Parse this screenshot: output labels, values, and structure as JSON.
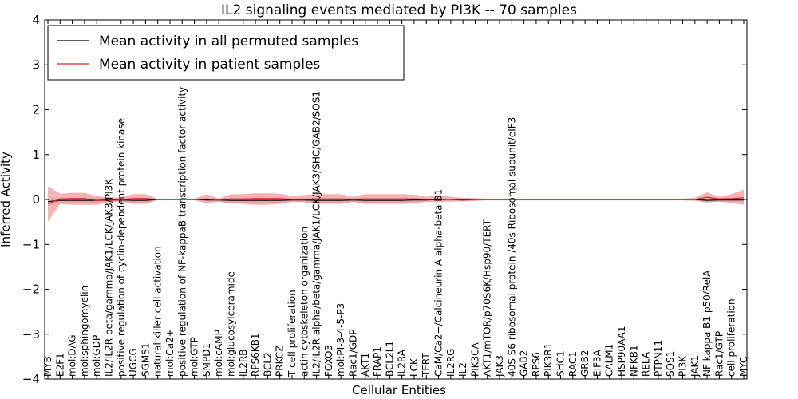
{
  "chart_data": {
    "type": "line",
    "title": "IL2 signaling events mediated by PI3K -- 70 samples",
    "xlabel": "Cellular Entities",
    "ylabel": "Inferred Activity",
    "ylim": [
      -4,
      4
    ],
    "yticks": [
      "−4",
      "−3",
      "−2",
      "−1",
      "0",
      "1",
      "2",
      "3",
      "4"
    ],
    "grid": false,
    "legend_position": "top-left",
    "colors": {
      "permuted": "#000000",
      "patient": "#d62728",
      "patient_band": "#f08080",
      "permuted_band": "#bbbbbb"
    },
    "categories": [
      "MYB",
      "E2F1",
      "mol:DAG",
      "mol:sphingomyelin",
      "mol:GDP",
      "IL2/IL2R beta/gamma/JAK1/LCK/JAK3/PI3K",
      "positive regulation of cyclin-dependent protein kinase",
      "UGCG",
      "SGMS1",
      "natural killer cell activation",
      "mol:Ca2+",
      "positive regulation of NF-kappaB transcription factor activity",
      "mol:GTP",
      "SMPD1",
      "mol:cAMP",
      "mol:glucosylceramide",
      "IL2RB",
      "RPS6KB1",
      "BCL2",
      "PRKCZ",
      "T cell proliferation",
      "actin cytoskeleton organization",
      "IL2/IL2R alpha/beta/gamma/JAK1/LCK/JAK3/SHC/GAB2/SOS1",
      "FOXO3",
      "mol:PI-3-4-5-P3",
      "Rac1/GDP",
      "AKT1",
      "FRAP1",
      "BCL2L1",
      "IL2RA",
      "LCK",
      "TERT",
      "CaM/Ca2+/Calcineurin A alpha-beta B1",
      "IL2RG",
      "IL2",
      "PIK3CA",
      "AKT1/mTOR/p70S6K/Hsp90/TERT",
      "JAK3",
      "40S S6 ribosomal protein /40s Ribosomal subunit/eIF3",
      "GAB2",
      "RPS6",
      "PIK3R1",
      "SHC1",
      "RAC1",
      "GRB2",
      "EIF3A",
      "CALM1",
      "HSP90AA1",
      "NFKB1",
      "RELA",
      "PTPN11",
      "SOS1",
      "PI3K",
      "JAK1",
      "NF kappa B1 p50/RelA",
      "Rac1/GTP",
      "cell proliferation",
      "MYC"
    ],
    "series": [
      {
        "name": "Mean activity in all permuted samples",
        "values": [
          -0.05,
          -0.02,
          -0.02,
          -0.02,
          -0.02,
          -0.01,
          -0.01,
          -0.02,
          -0.02,
          0,
          0,
          0,
          0,
          -0.01,
          -0.01,
          -0.02,
          -0.02,
          -0.02,
          -0.02,
          -0.02,
          -0.01,
          -0.01,
          -0.02,
          -0.02,
          -0.02,
          -0.01,
          -0.02,
          -0.02,
          -0.02,
          -0.02,
          -0.01,
          -0.01,
          0,
          0,
          -0.01,
          0,
          0,
          0,
          0,
          0,
          0,
          0,
          0,
          0,
          0,
          0,
          0,
          0,
          0,
          0,
          0,
          0,
          0,
          0,
          -0.02,
          -0.01,
          -0.01,
          -0.01
        ],
        "upper": [
          0.02,
          0.04,
          0.04,
          0.04,
          0.04,
          0.03,
          0.03,
          0.04,
          0.04,
          0.01,
          0.01,
          0.01,
          0.01,
          0.02,
          0.02,
          0.04,
          0.04,
          0.04,
          0.04,
          0.04,
          0.03,
          0.03,
          0.04,
          0.04,
          0.04,
          0.03,
          0.04,
          0.04,
          0.04,
          0.04,
          0.03,
          0.03,
          0.01,
          0.01,
          0.02,
          0.01,
          0.01,
          0.01,
          0.01,
          0.01,
          0.01,
          0.01,
          0.01,
          0.01,
          0.01,
          0.01,
          0.01,
          0.01,
          0.01,
          0.01,
          0.01,
          0.01,
          0.01,
          0.01,
          0.03,
          0.02,
          0.02,
          0.02
        ],
        "lower": [
          -0.14,
          -0.09,
          -0.09,
          -0.09,
          -0.09,
          -0.06,
          -0.05,
          -0.09,
          -0.09,
          -0.02,
          -0.02,
          -0.02,
          -0.02,
          -0.05,
          -0.05,
          -0.09,
          -0.09,
          -0.09,
          -0.09,
          -0.09,
          -0.06,
          -0.06,
          -0.09,
          -0.09,
          -0.09,
          -0.06,
          -0.09,
          -0.09,
          -0.09,
          -0.09,
          -0.06,
          -0.06,
          -0.03,
          -0.03,
          -0.05,
          -0.03,
          -0.02,
          -0.02,
          -0.02,
          -0.02,
          -0.02,
          -0.02,
          -0.02,
          -0.02,
          -0.02,
          -0.02,
          -0.02,
          -0.02,
          -0.02,
          -0.02,
          -0.02,
          -0.02,
          -0.02,
          -0.02,
          -0.08,
          -0.05,
          -0.05,
          -0.06
        ]
      },
      {
        "name": "Mean activity in patient samples",
        "values": [
          -0.1,
          0.01,
          0.02,
          0.02,
          -0.02,
          -0.02,
          -0.01,
          0.02,
          0.02,
          0,
          0,
          0,
          0,
          0.01,
          -0.01,
          0.01,
          0.01,
          0.02,
          0.02,
          0.02,
          0,
          0,
          0.01,
          0.01,
          0.01,
          0,
          0.01,
          0.01,
          0.01,
          0.01,
          0.01,
          0,
          0.01,
          0,
          0,
          0,
          0,
          0,
          0,
          0,
          0,
          0,
          0,
          0,
          0,
          0,
          0,
          0,
          0,
          0,
          0,
          0,
          0,
          0,
          0.05,
          0.01,
          0.02,
          0.04
        ],
        "upper": [
          0.3,
          0.13,
          0.15,
          0.15,
          0.08,
          0.04,
          0.05,
          0.12,
          0.12,
          0.01,
          0.01,
          0.01,
          0.02,
          0.12,
          0.02,
          0.12,
          0.12,
          0.14,
          0.14,
          0.13,
          0.08,
          0.1,
          0.12,
          0.12,
          0.12,
          0.06,
          0.12,
          0.12,
          0.12,
          0.12,
          0.11,
          0.06,
          0.1,
          0.06,
          0.04,
          0.03,
          0.02,
          0.02,
          0.02,
          0.02,
          0.02,
          0.02,
          0.02,
          0.02,
          0.02,
          0.02,
          0.02,
          0.02,
          0.02,
          0.02,
          0.02,
          0.02,
          0.02,
          0.04,
          0.16,
          0.06,
          0.12,
          0.22
        ],
        "lower": [
          -0.5,
          -0.1,
          -0.12,
          -0.12,
          -0.12,
          -0.05,
          -0.04,
          -0.1,
          -0.1,
          -0.01,
          -0.01,
          -0.01,
          -0.02,
          -0.08,
          -0.05,
          -0.09,
          -0.1,
          -0.12,
          -0.12,
          -0.1,
          -0.05,
          -0.06,
          -0.1,
          -0.1,
          -0.1,
          -0.05,
          -0.1,
          -0.1,
          -0.1,
          -0.1,
          -0.08,
          -0.05,
          -0.06,
          -0.05,
          -0.04,
          -0.03,
          -0.02,
          -0.02,
          -0.02,
          -0.02,
          -0.02,
          -0.02,
          -0.02,
          -0.02,
          -0.02,
          -0.02,
          -0.02,
          -0.02,
          -0.02,
          -0.02,
          -0.02,
          -0.02,
          -0.02,
          -0.03,
          -0.06,
          -0.05,
          -0.08,
          -0.12
        ]
      }
    ]
  }
}
